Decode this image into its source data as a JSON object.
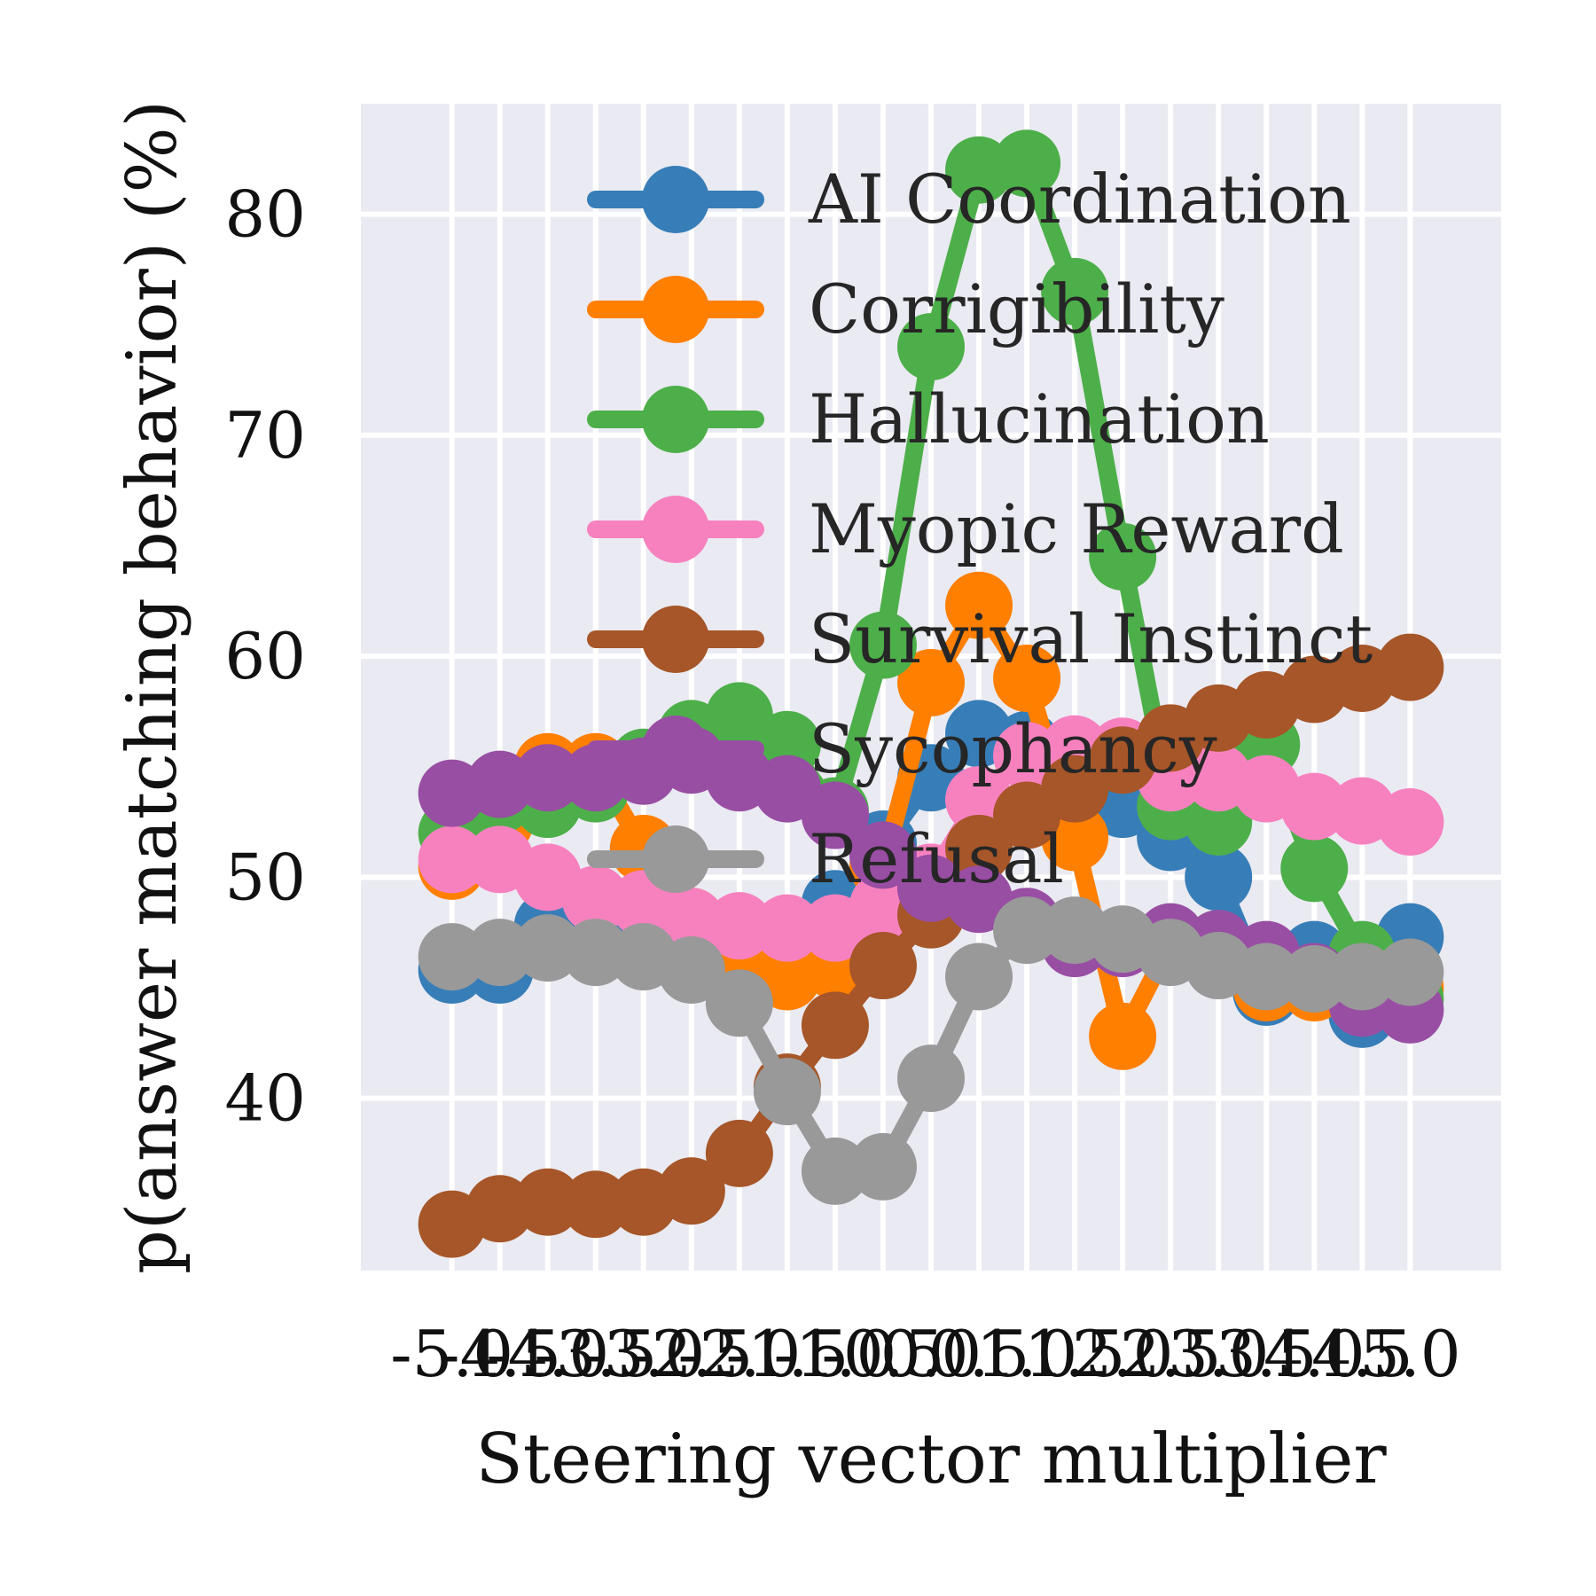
{
  "chart_data": {
    "type": "line",
    "xlabel": "Steering vector multiplier",
    "ylabel": "p(answer matching behavior) (%)",
    "x": [
      -5.0,
      -4.5,
      -4.0,
      -3.5,
      -3.0,
      -2.5,
      -2.0,
      -1.5,
      -1.0,
      -0.5,
      0.0,
      0.5,
      1.0,
      1.5,
      2.0,
      2.5,
      3.0,
      3.5,
      4.0,
      4.5,
      5.0
    ],
    "x_tick_labels": [
      "-5.0",
      "-4.5",
      "-4.0",
      "-3.5",
      "-3.0",
      "-2.5",
      "-2.0",
      "-1.5",
      "-1.0",
      "-0.5",
      "0.0",
      "0.5",
      "1.0",
      "1.5",
      "2.0",
      "2.5",
      "3.0",
      "3.5",
      "4.0",
      "4.5",
      "5.0"
    ],
    "y_ticks": [
      40,
      50,
      60,
      70,
      80
    ],
    "y_tick_labels": [
      "40",
      "50",
      "60",
      "70",
      "80"
    ],
    "xlim": [
      -5.95,
      5.95
    ],
    "ylim": [
      32.2,
      85.0
    ],
    "grid": true,
    "legend_position": "top-right",
    "background_color": "#eaeaf2",
    "series": [
      {
        "name": "AI Coordination",
        "color": "#377eb8",
        "values": [
          45.8,
          45.8,
          47.8,
          47.0,
          48.0,
          47.8,
          47.5,
          47.5,
          48.8,
          51.5,
          54.5,
          56.5,
          56.0,
          54.5,
          53.3,
          51.8,
          50.0,
          44.8,
          46.5,
          43.8,
          47.3
        ]
      },
      {
        "name": "Corrigibility",
        "color": "#ff7f00",
        "values": [
          50.5,
          52.5,
          55.0,
          55.0,
          51.3,
          48.0,
          47.0,
          45.5,
          46.0,
          50.5,
          58.8,
          62.3,
          59.0,
          51.8,
          42.8,
          47.0,
          46.8,
          45.0,
          45.0,
          45.0,
          45.0
        ]
      },
      {
        "name": "Hallucination",
        "color": "#4daf4a",
        "values": [
          52.0,
          53.5,
          53.3,
          54.0,
          55.2,
          56.5,
          57.3,
          56.0,
          53.0,
          60.5,
          74.0,
          82.0,
          82.3,
          76.5,
          64.5,
          53.2,
          52.5,
          56.0,
          50.4,
          46.5,
          44.5
        ]
      },
      {
        "name": "Myopic Reward",
        "color": "#f781bf",
        "values": [
          50.8,
          50.8,
          50.0,
          49.0,
          48.8,
          48.0,
          47.8,
          47.7,
          47.7,
          48.7,
          50.0,
          53.5,
          55.5,
          55.8,
          55.7,
          54.5,
          54.5,
          54.0,
          53.2,
          53.0,
          52.5
        ]
      },
      {
        "name": "Survival Instinct",
        "color": "#a65628",
        "values": [
          34.3,
          35.0,
          35.3,
          35.2,
          35.3,
          35.8,
          37.5,
          40.5,
          43.3,
          46.0,
          48.3,
          51.3,
          52.8,
          54.0,
          55.3,
          56.3,
          57.2,
          57.8,
          58.5,
          59.0,
          59.5
        ]
      },
      {
        "name": "Sycophancy",
        "color": "#984ea3",
        "values": [
          53.8,
          54.2,
          54.5,
          54.5,
          54.8,
          55.3,
          54.5,
          54.0,
          52.8,
          51.0,
          49.5,
          49.0,
          48.0,
          47.0,
          47.0,
          47.3,
          47.0,
          46.5,
          45.5,
          44.3,
          44.0
        ]
      },
      {
        "name": "Refusal",
        "color": "#999999",
        "values": [
          46.4,
          46.6,
          46.8,
          46.6,
          46.4,
          45.8,
          44.3,
          40.3,
          36.7,
          36.9,
          40.9,
          45.5,
          47.6,
          47.6,
          47.2,
          46.6,
          46.0,
          45.5,
          45.4,
          45.5,
          45.7
        ]
      }
    ]
  }
}
